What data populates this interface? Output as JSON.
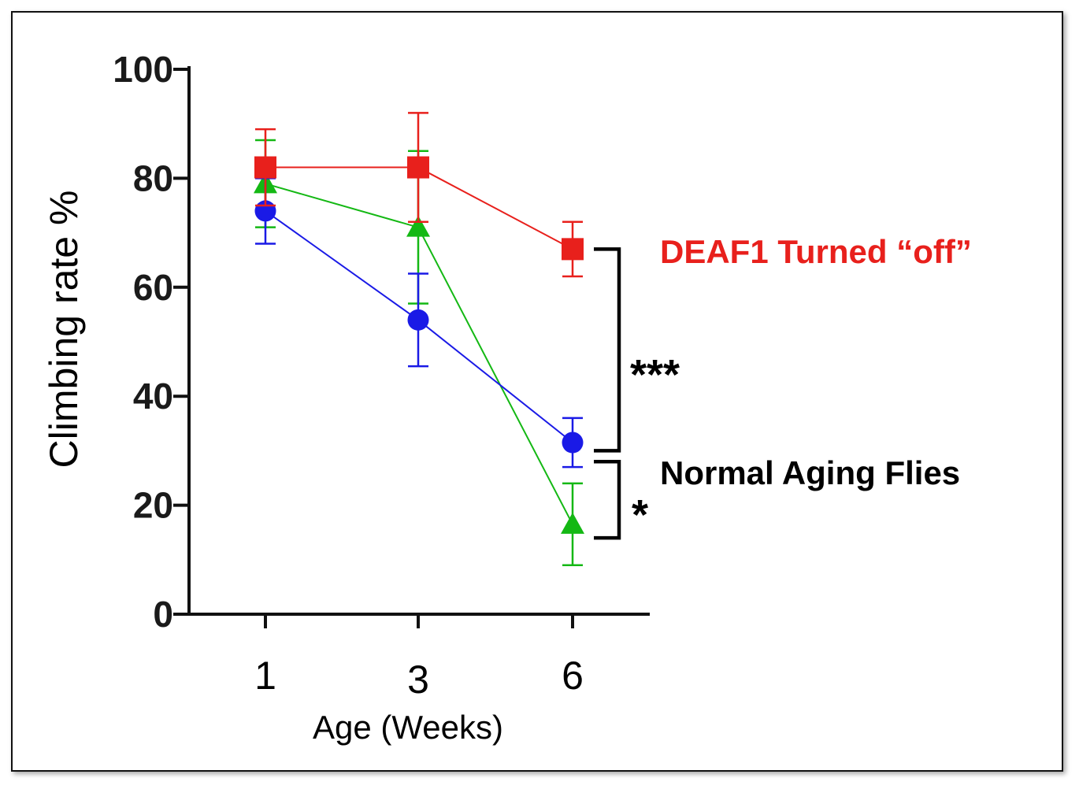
{
  "chart_data": {
    "type": "line",
    "ylabel": "Climbing rate %",
    "xlabel": "Age (Weeks)",
    "x": [
      "1",
      "3",
      "6"
    ],
    "ylim": [
      0,
      100
    ],
    "yticks": [
      "0",
      "20",
      "40",
      "60",
      "80",
      "100"
    ],
    "series": [
      {
        "color": "#e8201c",
        "marker": "square",
        "values": [
          82,
          82,
          67
        ],
        "errors": [
          7,
          10,
          5
        ]
      },
      {
        "color": "#1a1ae6",
        "marker": "circle",
        "values": [
          74,
          54,
          31.5
        ],
        "errors": [
          6,
          8.5,
          4.5
        ]
      },
      {
        "color": "#14b814",
        "marker": "triangle",
        "values": [
          79,
          71,
          16.5
        ],
        "errors": [
          8,
          14,
          7.5
        ]
      }
    ],
    "annotations": [
      {
        "text": "DEAF1 Turned “off”",
        "color": "#e8201c"
      },
      {
        "text": "Normal Aging Flies",
        "color": "#000000"
      }
    ],
    "significance": [
      {
        "text": "***",
        "between": [
          67,
          30
        ]
      },
      {
        "text": "*",
        "between": [
          28,
          14
        ]
      }
    ]
  }
}
